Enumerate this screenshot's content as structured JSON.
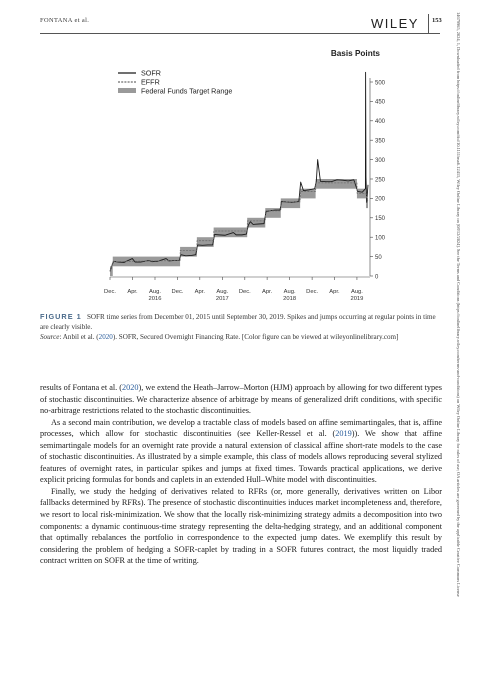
{
  "header": {
    "author": "FONTANA et al.",
    "publisher": "WILEY",
    "page_number": "153"
  },
  "side_note": "14679965, 2024, 1, Downloaded from https://onlinelibrary.wiley.com/doi/10.1111/mafi.12415, Wiley Online Library on [08/12/2024]. See the Terms and Conditions (https://onlinelibrary.wiley.com/terms-and-conditions) on Wiley Online Library for rules of use; OA articles are governed by the applicable Creative Commons License",
  "figure": {
    "label": "FIGURE 1",
    "caption_text": "SOFR time series from December 01, 2015 until September 30, 2019. Spikes and jumps occurring at regular points in time are clearly visible.",
    "source_label": "Source",
    "source_prefix": ": Anbil et al. (",
    "source_year": "2020",
    "source_suffix": "). SOFR, Secured Overnight Financing Rate. [Color figure can be viewed at wileyonlinelibrary.com]"
  },
  "chart_data": {
    "type": "line",
    "title": "Basis Points",
    "legend": [
      "SOFR",
      "EFFR",
      "Federal Funds Target Range"
    ],
    "legend_placement": "top-left",
    "y_axis_side": "right",
    "ylim": [
      0,
      500
    ],
    "yticks": [
      0,
      50,
      100,
      150,
      200,
      250,
      300,
      350,
      400,
      450,
      500
    ],
    "xlim": [
      "2015-12-01",
      "2019-09-30"
    ],
    "xticks": [
      {
        "label": "Dec.",
        "date": "2015-12-01"
      },
      {
        "label": "Apr.",
        "date": "2016-04-01"
      },
      {
        "label": "Aug.",
        "date": "2016-08-01",
        "year": "2016"
      },
      {
        "label": "Dec.",
        "date": "2016-12-01"
      },
      {
        "label": "Apr.",
        "date": "2017-04-01"
      },
      {
        "label": "Aug.",
        "date": "2017-08-01",
        "year": "2017"
      },
      {
        "label": "Dec.",
        "date": "2017-12-01"
      },
      {
        "label": "Apr.",
        "date": "2018-04-01"
      },
      {
        "label": "Aug.",
        "date": "2018-08-01",
        "year": "2018"
      },
      {
        "label": "Dec.",
        "date": "2018-12-01"
      },
      {
        "label": "Apr.",
        "date": "2019-04-01"
      },
      {
        "label": "Aug.",
        "date": "2019-08-01",
        "year": "2019"
      }
    ],
    "grid": false,
    "target_range": [
      {
        "start": "2015-12-01",
        "end": "2015-12-16",
        "low": 0,
        "high": 25
      },
      {
        "start": "2015-12-16",
        "end": "2016-12-15",
        "low": 25,
        "high": 50
      },
      {
        "start": "2016-12-15",
        "end": "2017-03-16",
        "low": 50,
        "high": 75
      },
      {
        "start": "2017-03-16",
        "end": "2017-06-15",
        "low": 75,
        "high": 100
      },
      {
        "start": "2017-06-15",
        "end": "2017-12-14",
        "low": 100,
        "high": 125
      },
      {
        "start": "2017-12-14",
        "end": "2018-03-22",
        "low": 125,
        "high": 150
      },
      {
        "start": "2018-03-22",
        "end": "2018-06-14",
        "low": 150,
        "high": 175
      },
      {
        "start": "2018-06-14",
        "end": "2018-09-27",
        "low": 175,
        "high": 200
      },
      {
        "start": "2018-09-27",
        "end": "2018-12-20",
        "low": 200,
        "high": 225
      },
      {
        "start": "2018-12-20",
        "end": "2019-08-01",
        "low": 225,
        "high": 250
      },
      {
        "start": "2019-08-01",
        "end": "2019-09-19",
        "low": 200,
        "high": 225
      },
      {
        "start": "2019-09-19",
        "end": "2019-09-30",
        "low": 175,
        "high": 200
      }
    ],
    "series": [
      {
        "name": "SOFR",
        "x": [
          "2015-12-01",
          "2015-12-20",
          "2016-01-15",
          "2016-02-15",
          "2016-03-31",
          "2016-04-15",
          "2016-05-15",
          "2016-06-30",
          "2016-07-15",
          "2016-08-15",
          "2016-09-30",
          "2016-10-15",
          "2016-11-15",
          "2016-12-10",
          "2016-12-20",
          "2017-01-15",
          "2017-02-15",
          "2017-03-10",
          "2017-03-20",
          "2017-04-15",
          "2017-05-15",
          "2017-06-10",
          "2017-06-20",
          "2017-07-15",
          "2017-08-15",
          "2017-09-30",
          "2017-10-15",
          "2017-11-15",
          "2017-12-10",
          "2017-12-20",
          "2017-12-31",
          "2018-01-15",
          "2018-02-15",
          "2018-03-15",
          "2018-03-26",
          "2018-04-15",
          "2018-05-15",
          "2018-06-10",
          "2018-06-18",
          "2018-07-15",
          "2018-08-15",
          "2018-09-20",
          "2018-09-30",
          "2018-10-15",
          "2018-11-15",
          "2018-12-15",
          "2018-12-24",
          "2018-12-31",
          "2019-01-15",
          "2019-02-15",
          "2019-03-15",
          "2019-04-15",
          "2019-05-15",
          "2019-06-15",
          "2019-07-15",
          "2019-08-05",
          "2019-08-30",
          "2019-09-16",
          "2019-09-17",
          "2019-09-19",
          "2019-09-23",
          "2019-09-30"
        ],
        "values": [
          12,
          38,
          36,
          35,
          45,
          36,
          36,
          40,
          37,
          38,
          45,
          39,
          40,
          40,
          55,
          52,
          53,
          55,
          80,
          79,
          80,
          80,
          107,
          106,
          105,
          112,
          106,
          106,
          108,
          131,
          140,
          133,
          134,
          135,
          166,
          168,
          170,
          170,
          192,
          191,
          190,
          192,
          242,
          220,
          222,
          225,
          245,
          300,
          244,
          243,
          243,
          248,
          247,
          245,
          248,
          218,
          216,
          225,
          525,
          255,
          190,
          235
        ]
      },
      {
        "name": "EFFR",
        "x": [
          "2015-12-01",
          "2015-12-17",
          "2016-12-15",
          "2016-12-16",
          "2017-03-16",
          "2017-03-17",
          "2017-06-15",
          "2017-06-16",
          "2017-12-14",
          "2017-12-15",
          "2018-03-22",
          "2018-03-23",
          "2018-06-14",
          "2018-06-15",
          "2018-09-27",
          "2018-09-28",
          "2018-12-20",
          "2018-12-21",
          "2019-08-01",
          "2019-08-02",
          "2019-09-19",
          "2019-09-30"
        ],
        "values": [
          13,
          37,
          40,
          66,
          66,
          91,
          91,
          116,
          116,
          142,
          142,
          168,
          168,
          191,
          191,
          218,
          218,
          240,
          240,
          213,
          213,
          190
        ]
      }
    ]
  },
  "body": {
    "p1_a": "results of Fontana et al. (",
    "p1_year": "2020",
    "p1_b": "), we extend the Heath–Jarrow–Morton (HJM) approach by allowing for two different types of stochastic discontinuities. We characterize absence of arbitrage by means of generalized drift conditions, with specific no-arbitrage restrictions related to the stochastic discontinuities.",
    "p2_a": "As a second main contribution, we develop a tractable class of models based on affine semimartingales, that is, affine processes, which allow for stochastic discontinuities (see Keller-Ressel et al. (",
    "p2_year": "2019",
    "p2_b": ")). We show that affine semimartingale models for an overnight rate provide a natural extension of classical affine short-rate models to the case of stochastic discontinuities. As illustrated by a simple example, this class of models allows reproducing several stylized features of overnight rates, in particular spikes and jumps at fixed times. Towards practical applications, we derive explicit pricing formulas for bonds and caplets in an extended Hull–White model with discontinuities.",
    "p3": "Finally, we study the hedging of derivatives related to RFRs (or, more generally, derivatives written on Libor fallbacks determined by RFRs). The presence of stochastic discontinuities induces market incompleteness and, therefore, we resort to local risk-minimization. We show that the locally risk-minimizing strategy admits a decomposition into two components: a dynamic continuous-time strategy representing the delta-hedging strategy, and an additional component that optimally rebalances the portfolio in correspondence to the expected jump dates. We exemplify this result by considering the problem of hedging a SOFR-caplet by trading in a SOFR futures contract, the most liquidly traded contract written on SOFR at the time of writing."
  }
}
